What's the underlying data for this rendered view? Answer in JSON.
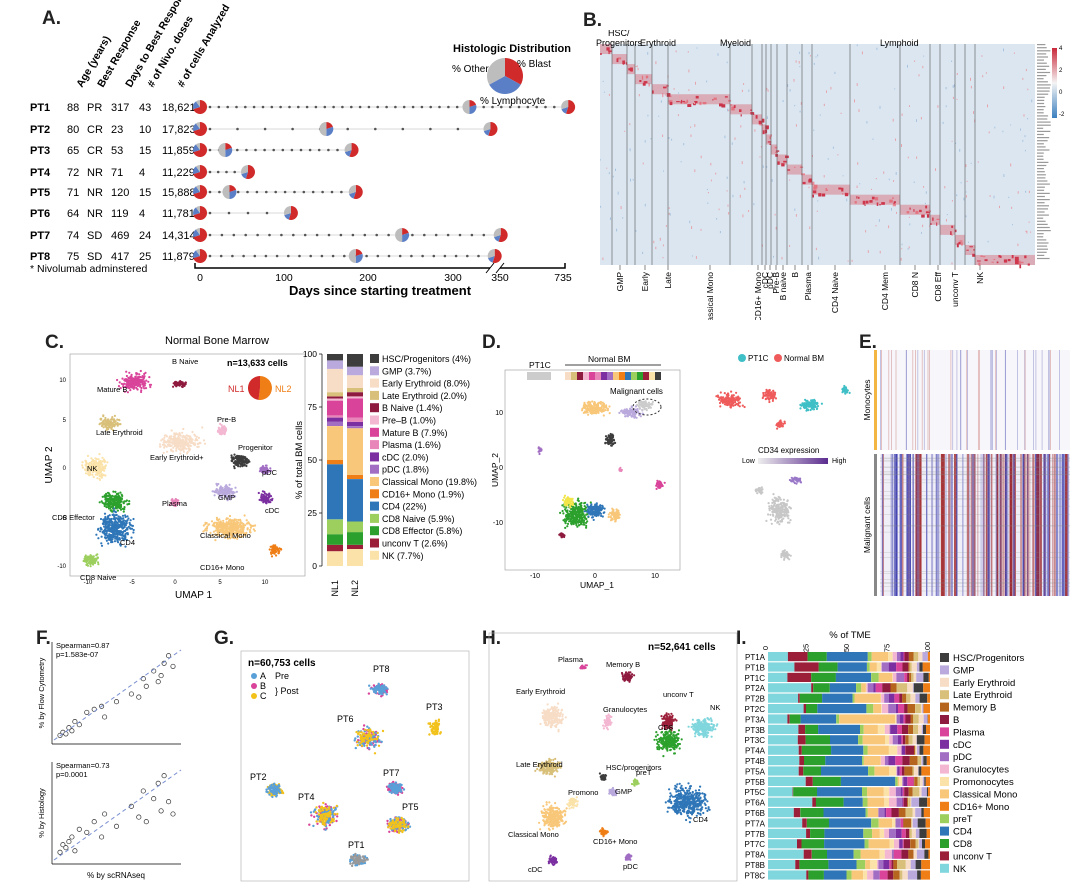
{
  "panels": {
    "A": {
      "label": "A.",
      "col_headers": [
        "Age (years)",
        "Best Response",
        "Days to Best Response",
        "# of Nivo. doses",
        "# of cells Analyzed"
      ],
      "patients": [
        {
          "id": "PT1",
          "age": "88",
          "resp": "PR",
          "days": "317",
          "doses": "43",
          "cells": "18,621"
        },
        {
          "id": "PT2",
          "age": "80",
          "resp": "CR",
          "days": "23",
          "doses": "10",
          "cells": "17,823"
        },
        {
          "id": "PT3",
          "age": "65",
          "resp": "CR",
          "days": "53",
          "doses": "15",
          "cells": "11,859"
        },
        {
          "id": "PT4",
          "age": "72",
          "resp": "NR",
          "days": "71",
          "doses": "4",
          "cells": "11,229"
        },
        {
          "id": "PT5",
          "age": "71",
          "resp": "NR",
          "days": "120",
          "doses": "15",
          "cells": "15,888"
        },
        {
          "id": "PT6",
          "age": "64",
          "resp": "NR",
          "days": "119",
          "doses": "4",
          "cells": "11,781"
        },
        {
          "id": "PT7",
          "age": "74",
          "resp": "SD",
          "days": "469",
          "doses": "24",
          "cells": "14,314"
        },
        {
          "id": "PT8",
          "age": "75",
          "resp": "SD",
          "days": "417",
          "doses": "25",
          "cells": "11,879"
        }
      ],
      "footnote": "* Nivolumab adminstered",
      "histo_title": "Histologic Distribution",
      "histo_other": "% Other",
      "histo_blast": "% Blast",
      "histo_lymph": "% Lymphocyte",
      "axis_ticks": [
        "0",
        "100",
        "200",
        "300",
        "350",
        "735"
      ],
      "xlabel": "Days since starting treatment"
    },
    "B": {
      "label": "B.",
      "top_groups": [
        "HSC/ Progenitors",
        "Erythroid",
        "Myeloid",
        "Lymphoid"
      ],
      "bottom_labels": [
        "GMP",
        "Early",
        "Late",
        "Classical Mono",
        "CD16+ Mono",
        "cDC",
        "pDC",
        "Pre-B",
        "B naive",
        "B",
        "Plasma",
        "CD4 Naive",
        "CD4 Mem",
        "CD8 N",
        "CD8 Eff",
        "unconv T",
        "NK"
      ],
      "scale_ticks": [
        "4",
        "2",
        "0",
        "-2"
      ]
    },
    "C": {
      "label": "C.",
      "title": "Normal Bone Marrow",
      "ncells": "n=13,633 cells",
      "nl1": "NL1",
      "nl2": "NL2",
      "xlabel": "UMAP 1",
      "ylabel": "UMAP 2",
      "umap_ticks_x": [
        "-10",
        "-5",
        "0",
        "5",
        "10"
      ],
      "umap_ticks_y": [
        "10",
        "5",
        "0",
        "-5",
        "-10"
      ],
      "cluster_labels": [
        "Mature B",
        "B Naive",
        "Late Erythroid",
        "Pre-B",
        "Early Erythroid+",
        "Progenitor",
        "pDC",
        "NK",
        "cDC",
        "GMP",
        "CD8 Effector",
        "Plasma",
        "Classical Mono",
        "CD4",
        "CD8 Naive",
        "CD16+ Mono"
      ],
      "bar_ylabel": "% of total BM cells",
      "bar_ticks": [
        "100",
        "75",
        "50",
        "25",
        "0"
      ],
      "bar_categories": [
        "NL1",
        "NL2"
      ],
      "legend": [
        {
          "label": "HSC/Progenitors (4%)",
          "color": "#3d3d3d"
        },
        {
          "label": "GMP (3.7%)",
          "color": "#b9a9dc"
        },
        {
          "label": "Early Erythroid (8.0%)",
          "color": "#f7dcc6"
        },
        {
          "label": "Late Erythroid (2.0%)",
          "color": "#d9c07a"
        },
        {
          "label": "B Naive (1.4%)",
          "color": "#8e1b3f"
        },
        {
          "label": "Pre–B (1.0%)",
          "color": "#f3b7d2"
        },
        {
          "label": "Mature B (7.9%)",
          "color": "#d9449a"
        },
        {
          "label": "Plasma (1.6%)",
          "color": "#e885b9"
        },
        {
          "label": "cDC (2.0%)",
          "color": "#7b2fa0"
        },
        {
          "label": "pDC (1.8%)",
          "color": "#a16ec4"
        },
        {
          "label": "Classical Mono (19.8%)",
          "color": "#f8c779"
        },
        {
          "label": "CD16+ Mono (1.9%)",
          "color": "#ef7e16"
        },
        {
          "label": "CD4 (22%)",
          "color": "#2f76b8"
        },
        {
          "label": "CD8 Naive (5.9%)",
          "color": "#9ccf5e"
        },
        {
          "label": "CD8 Effector (5.8%)",
          "color": "#2ca02c"
        },
        {
          "label": "unconv T (2.6%)",
          "color": "#9c1f3a"
        },
        {
          "label": "NK (7.7%)",
          "color": "#fbe2a8"
        }
      ]
    },
    "chart_data": [
      {
        "type": "bar",
        "panel": "C",
        "stacked": true,
        "categories": [
          "NL1",
          "NL2"
        ],
        "ylabel": "% of total BM cells",
        "ylim": [
          0,
          100
        ],
        "series": [
          {
            "name": "NK (7.7%)",
            "values": [
              7,
              8
            ]
          },
          {
            "name": "unconv T (2.6%)",
            "values": [
              3,
              2
            ]
          },
          {
            "name": "CD8 Effector (5.8%)",
            "values": [
              5,
              6
            ]
          },
          {
            "name": "CD8 Naive (5.9%)",
            "values": [
              7,
              5
            ]
          },
          {
            "name": "CD4 (22%)",
            "values": [
              26,
              20
            ]
          },
          {
            "name": "CD16+ Mono (1.9%)",
            "values": [
              2,
              2
            ]
          },
          {
            "name": "Classical Mono (19.8%)",
            "values": [
              16,
              22
            ]
          },
          {
            "name": "pDC (1.8%)",
            "values": [
              2,
              1
            ]
          },
          {
            "name": "cDC (2.0%)",
            "values": [
              2,
              2
            ]
          },
          {
            "name": "Plasma (1.6%)",
            "values": [
              1,
              2
            ]
          },
          {
            "name": "Mature B (7.9%)",
            "values": [
              7,
              9
            ]
          },
          {
            "name": "Pre–B (1.0%)",
            "values": [
              1,
              1
            ]
          },
          {
            "name": "B Naive (1.4%)",
            "values": [
              1,
              2
            ]
          },
          {
            "name": "Late Erythroid (2.0%)",
            "values": [
              2,
              2
            ]
          },
          {
            "name": "Early Erythroid (8.0%)",
            "values": [
              11,
              6
            ]
          },
          {
            "name": "GMP (3.7%)",
            "values": [
              4,
              4
            ]
          },
          {
            "name": "HSC/Progenitors (4%)",
            "values": [
              3,
              6
            ]
          }
        ]
      },
      {
        "type": "scatter",
        "panel": "F-top",
        "xlabel": "",
        "ylabel": "% by Flow Cytometry",
        "annotation": [
          "Spearman=0.87",
          "p=1.583e-07"
        ],
        "x": [
          2,
          4,
          6,
          8,
          10,
          12,
          15,
          20,
          25,
          30,
          32,
          40,
          50,
          55,
          58,
          60,
          65,
          68,
          70,
          72,
          75,
          78
        ],
        "y": [
          3,
          5,
          4,
          8,
          6,
          12,
          10,
          18,
          20,
          22,
          15,
          25,
          30,
          28,
          40,
          35,
          45,
          38,
          42,
          50,
          55,
          48
        ]
      },
      {
        "type": "scatter",
        "panel": "F-bottom",
        "xlabel": "% by scRNAseq",
        "ylabel": "% by Histology",
        "annotation": [
          "Spearman=0.73",
          "p=0.0001"
        ],
        "x": [
          2,
          4,
          6,
          8,
          10,
          12,
          15,
          20,
          25,
          30,
          32,
          40,
          50,
          55,
          58,
          60,
          65,
          68,
          70,
          72,
          75,
          78
        ],
        "y": [
          5,
          10,
          8,
          12,
          15,
          6,
          20,
          18,
          25,
          15,
          30,
          22,
          35,
          28,
          45,
          25,
          40,
          50,
          32,
          55,
          38,
          30
        ]
      }
    ],
    "D": {
      "label": "D.",
      "pt1c": "PT1C",
      "normal_bm": "Normal BM",
      "malignant": "Malignant cells",
      "legend_pt1c": "PT1C",
      "legend_nbm": "Normal BM",
      "cd34_title": "CD34 expression",
      "cd34_low": "Low",
      "cd34_high": "High",
      "xlabel": "UMAP_1",
      "ylabel": "UMAP_2",
      "ticks_x": [
        "-10",
        "0",
        "10"
      ],
      "ticks_y": [
        "10",
        "0",
        "-10"
      ]
    },
    "E": {
      "label": "E.",
      "monocytes": "Monocytes",
      "malignant": "Malignant cells"
    },
    "F": {
      "label": "F.",
      "top_ylabel": "% by Flow Cytometry",
      "bottom_ylabel": "% by Histology",
      "xlabel": "% by scRNAseq",
      "top_anno1": "Spearman=0.87",
      "top_anno2": "p=1.583e-07",
      "bot_anno1": "Spearman=0.73",
      "bot_anno2": "p=0.0001"
    },
    "G": {
      "label": "G.",
      "ncells": "n=60,753 cells",
      "leg_a": "A",
      "leg_b": "B",
      "leg_c": "C",
      "pre": "Pre",
      "post": "Post",
      "patients": [
        "PT8",
        "PT6",
        "PT3",
        "PT2",
        "PT7",
        "PT4",
        "PT5",
        "PT1"
      ]
    },
    "H": {
      "label": "H.",
      "ncells": "n=52,641 cells",
      "clusters": [
        "Plasma",
        "Memory B",
        "Early Erythroid",
        "Granulocytes",
        "unconv T",
        "NK",
        "CD8",
        "Late Erythroid",
        "HSC/progenitors",
        "preT",
        "GMP",
        "Promono",
        "Classical Mono",
        "CD4",
        "CD16+ Mono",
        "cDC",
        "pDC"
      ]
    },
    "I": {
      "label": "I.",
      "title": "% of TME",
      "ticks": [
        "0",
        "25",
        "50",
        "75",
        "100"
      ],
      "samples": [
        "PT1A",
        "PT1B",
        "PT1C",
        "PT2A",
        "PT2B",
        "PT2C",
        "PT3A",
        "PT3B",
        "PT3C",
        "PT4A",
        "PT4B",
        "PT5A",
        "PT5B",
        "PT5C",
        "PT6A",
        "PT6B",
        "PT7A",
        "PT7B",
        "PT7C",
        "PT8A",
        "PT8B",
        "PT8C"
      ],
      "legend": [
        {
          "label": "HSC/Progenitors",
          "color": "#3d3d3d"
        },
        {
          "label": "GMP",
          "color": "#b9a9dc"
        },
        {
          "label": "Early Erythroid",
          "color": "#f7dcc6"
        },
        {
          "label": "Late Erythroid",
          "color": "#d9c07a"
        },
        {
          "label": "Memory B",
          "color": "#b5651d"
        },
        {
          "label": "B",
          "color": "#8e1b3f"
        },
        {
          "label": "Plasma",
          "color": "#d9449a"
        },
        {
          "label": "cDC",
          "color": "#7b2fa0"
        },
        {
          "label": "pDC",
          "color": "#a16ec4"
        },
        {
          "label": "Granulocytes",
          "color": "#f3b7d2"
        },
        {
          "label": "Promonocytes",
          "color": "#fbe2a8"
        },
        {
          "label": "Classical Mono",
          "color": "#f8c779"
        },
        {
          "label": "CD16+ Mono",
          "color": "#ef7e16"
        },
        {
          "label": "preT",
          "color": "#9ccf5e"
        },
        {
          "label": "CD4",
          "color": "#2f76b8"
        },
        {
          "label": "CD8",
          "color": "#2ca02c"
        },
        {
          "label": "unconv T",
          "color": "#9c1f3a"
        },
        {
          "label": "NK",
          "color": "#80d6dd"
        }
      ]
    }
  }
}
